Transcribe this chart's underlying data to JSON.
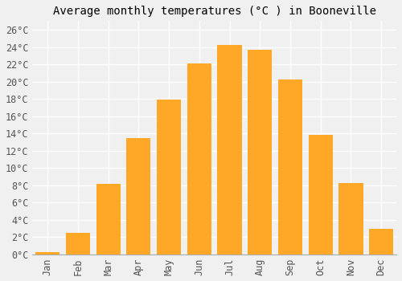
{
  "months": [
    "Jan",
    "Feb",
    "Mar",
    "Apr",
    "May",
    "Jun",
    "Jul",
    "Aug",
    "Sep",
    "Oct",
    "Nov",
    "Dec"
  ],
  "values": [
    0.3,
    2.5,
    8.2,
    13.5,
    17.9,
    22.1,
    24.2,
    23.7,
    20.2,
    13.8,
    8.3,
    3.0
  ],
  "bar_color": "#FFA726",
  "bar_edge_color": "#F5A800",
  "title": "Average monthly temperatures (°C ) in Booneville",
  "ylim": [
    0,
    27
  ],
  "yticks": [
    0,
    2,
    4,
    6,
    8,
    10,
    12,
    14,
    16,
    18,
    20,
    22,
    24,
    26
  ],
  "ytick_labels": [
    "0°C",
    "2°C",
    "4°C",
    "6°C",
    "8°C",
    "10°C",
    "12°C",
    "14°C",
    "16°C",
    "18°C",
    "20°C",
    "22°C",
    "24°C",
    "26°C"
  ],
  "background_color": "#f0f0f0",
  "grid_color": "#ffffff",
  "title_fontsize": 10,
  "tick_fontsize": 8.5,
  "font_family": "monospace",
  "bar_width": 0.8
}
